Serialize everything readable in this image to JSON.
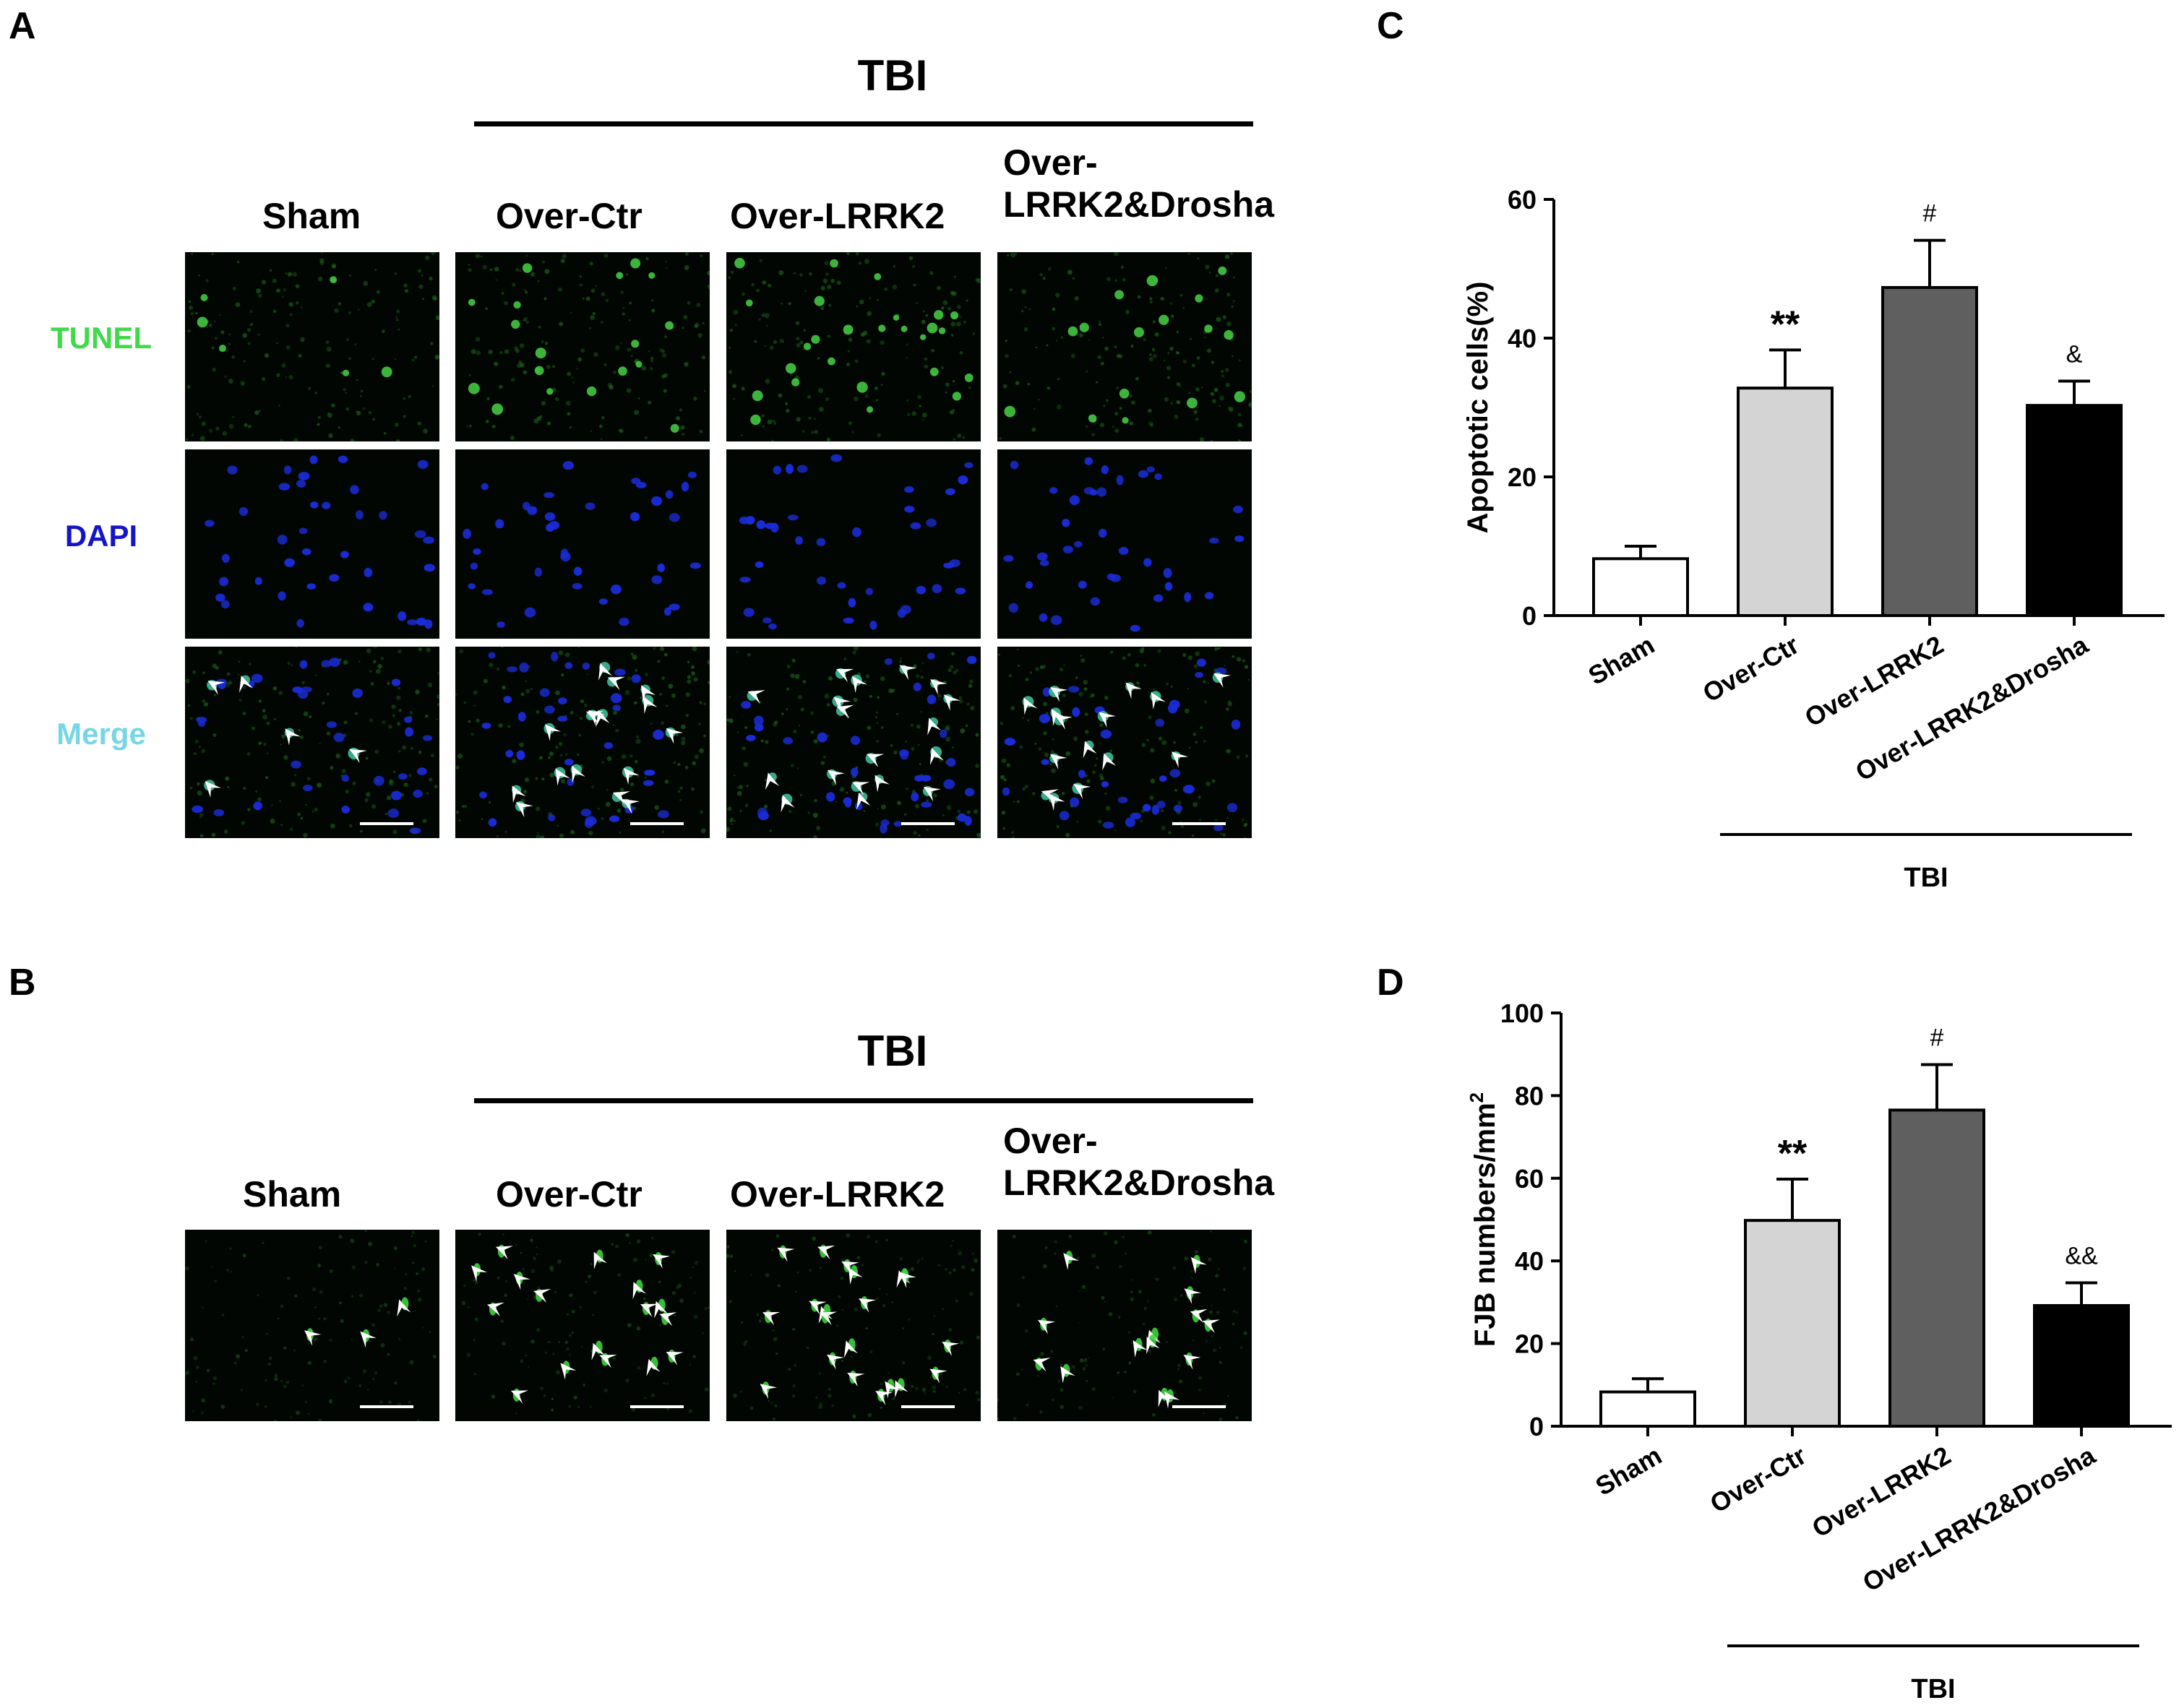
{
  "panels": {
    "A": {
      "letter": "A",
      "group_label": "TBI",
      "columns": [
        "Sham",
        "Over-Ctr",
        "Over-LRRK2",
        "Over-\nLRRK2&Drosha"
      ],
      "rows": [
        {
          "label": "TUNEL",
          "color": "#3fd94a"
        },
        {
          "label": "DAPI",
          "color": "#1515c8"
        },
        {
          "label": "Merge",
          "color": "#77d6e6"
        }
      ]
    },
    "B": {
      "letter": "B",
      "group_label": "TBI",
      "columns": [
        "Sham",
        "Over-Ctr",
        "Over-LRRK2",
        "Over-\nLRRK2&Drosha"
      ]
    }
  },
  "chart_data": [
    {
      "panel": "C",
      "type": "bar",
      "categories": [
        "Sham",
        "Over-Ctr",
        "Over-LRRK2",
        "Over-LRRK2&Drosha"
      ],
      "values": [
        8.2,
        32.8,
        47.3,
        30.3
      ],
      "errors": [
        1.8,
        5.5,
        6.8,
        3.5
      ],
      "annotations": [
        "",
        "**",
        "#",
        "&"
      ],
      "bar_colors": [
        "#ffffff",
        "#d4d4d4",
        "#5f5f5f",
        "#000000"
      ],
      "ylabel": "Apoptotic cells(%)",
      "ylim": [
        0,
        60
      ],
      "yticks": [
        0,
        20,
        40,
        60
      ],
      "group_label": "TBI"
    },
    {
      "panel": "D",
      "type": "bar",
      "categories": [
        "Sham",
        "Over-Ctr",
        "Over-LRRK2",
        "Over-LRRK2&Drosha"
      ],
      "values": [
        8.3,
        49.8,
        76.5,
        29.2
      ],
      "errors": [
        3.2,
        10.0,
        11.0,
        5.5
      ],
      "annotations": [
        "",
        "**",
        "#",
        "&&"
      ],
      "bar_colors": [
        "#ffffff",
        "#d4d4d4",
        "#5f5f5f",
        "#000000"
      ],
      "ylabel": "FJB numbers/mm",
      "ylabel_superscript": "2",
      "ylim": [
        0,
        100
      ],
      "yticks": [
        0,
        20,
        40,
        60,
        80,
        100
      ],
      "group_label": "TBI"
    }
  ]
}
